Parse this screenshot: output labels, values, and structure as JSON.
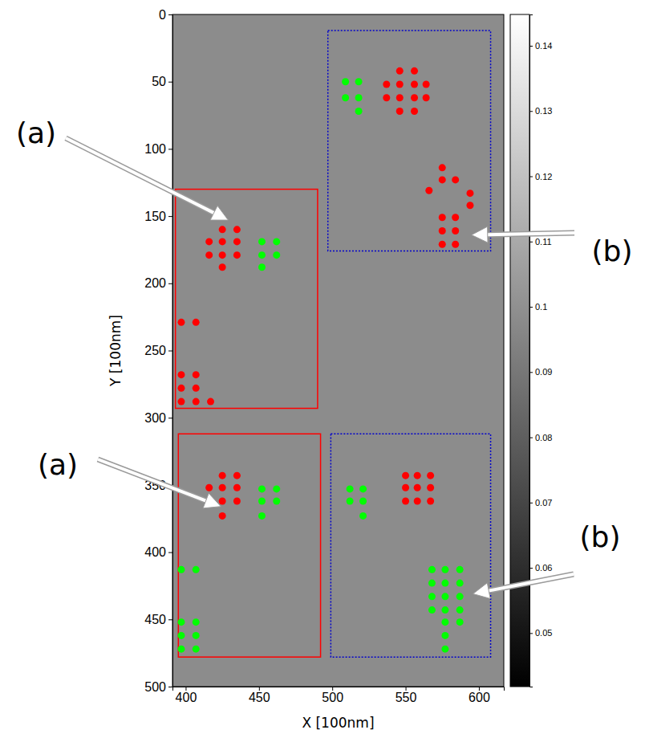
{
  "chart_data": {
    "type": "scatter",
    "xlabel": "X [100nm]",
    "ylabel": "Y [100nm]",
    "xlim": [
      391,
      617
    ],
    "ylim": [
      500,
      0
    ],
    "xticks": [
      400,
      450,
      500,
      550,
      600
    ],
    "yticks": [
      0,
      50,
      100,
      150,
      200,
      250,
      300,
      350,
      400,
      450,
      500
    ],
    "grid": false,
    "series": [
      {
        "color": "#ff0000",
        "marker": "circle",
        "x": [
          546,
          556,
          537,
          546,
          556,
          564,
          537,
          546,
          556,
          564,
          546,
          556,
          575,
          575,
          584,
          566,
          594,
          594,
          575,
          584,
          575,
          584,
          575,
          584,
          425,
          435,
          416,
          425,
          435,
          416,
          425,
          435,
          425,
          397,
          407,
          397,
          407,
          397,
          407,
          397,
          407,
          417,
          425,
          435,
          416,
          425,
          435,
          416,
          425,
          435,
          425,
          550,
          558,
          567,
          550,
          558,
          567,
          550,
          558,
          567
        ],
        "values": [
          42,
          42,
          52,
          52,
          52,
          52,
          62,
          62,
          62,
          62,
          72,
          72,
          114,
          123,
          123,
          131,
          133,
          142,
          151,
          151,
          161,
          161,
          171,
          171,
          160,
          160,
          169,
          169,
          169,
          179,
          179,
          179,
          188,
          229,
          229,
          268,
          268,
          278,
          278,
          288,
          288,
          288,
          343,
          343,
          352,
          352,
          352,
          362,
          362,
          362,
          373,
          343,
          343,
          343,
          352,
          352,
          352,
          362,
          362,
          362
        ]
      },
      {
        "color": "#00ff00",
        "marker": "circle",
        "x": [
          509,
          518,
          509,
          518,
          518,
          452,
          462,
          452,
          462,
          452,
          452,
          462,
          452,
          462,
          452,
          397,
          407,
          397,
          407,
          397,
          407,
          397,
          407,
          512,
          521,
          512,
          521,
          521,
          568,
          577,
          587,
          568,
          577,
          587,
          568,
          577,
          587,
          568,
          577,
          587,
          577,
          587,
          577,
          577
        ],
        "values": [
          50,
          50,
          62,
          62,
          72,
          169,
          169,
          179,
          179,
          188,
          353,
          353,
          362,
          362,
          373,
          413,
          413,
          452,
          452,
          462,
          462,
          472,
          472,
          353,
          353,
          362,
          362,
          373,
          413,
          413,
          413,
          423,
          423,
          423,
          433,
          433,
          433,
          443,
          443,
          443,
          452,
          452,
          462,
          472
        ]
      }
    ],
    "regions": [
      {
        "x": [
          393,
          490
        ],
        "y": [
          130,
          293
        ],
        "color": "#ff0000",
        "line_style": "solid"
      },
      {
        "x": [
          395,
          492
        ],
        "y": [
          312,
          478
        ],
        "color": "#ff0000",
        "line_style": "solid"
      },
      {
        "x": [
          497,
          608
        ],
        "y": [
          12,
          176
        ],
        "color": "#0000cc",
        "line_style": "dotted"
      },
      {
        "x": [
          499,
          608
        ],
        "y": [
          312,
          478
        ],
        "color": "#0000cc",
        "line_style": "dotted"
      }
    ],
    "annotations": [
      {
        "text": "(a)",
        "x": 429,
        "y": 153
      },
      {
        "text": "(a)",
        "x": 424,
        "y": 366
      },
      {
        "text": "(b)",
        "x": 595,
        "y": 164
      },
      {
        "text": "(b)",
        "x": 596,
        "y": 431
      }
    ],
    "colorbar": {
      "range": [
        0.0418,
        0.1448
      ],
      "ticks": [
        0.05,
        0.06,
        0.07,
        0.08,
        0.09,
        0.1,
        0.11,
        0.12,
        0.13,
        0.14
      ]
    }
  }
}
